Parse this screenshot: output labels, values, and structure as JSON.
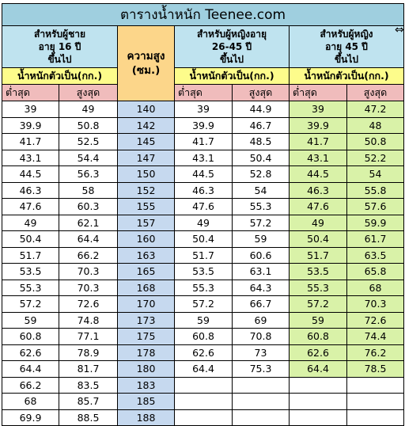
{
  "title": "ตารางน้ำหนัก Teenee.com",
  "groups": {
    "male": [
      "สำหรับผู้ชาย",
      "อายุ 16 ปี",
      "ขึ้นไป"
    ],
    "height": [
      "ความสูง",
      "(ซม.)"
    ],
    "female_26_45": [
      "สำหรับผู้หญิงอายุ",
      "26-45 ปี",
      "ขึ้นไป"
    ],
    "female_45": [
      "สำหรับผู้หญิง",
      "อายุ 45 ปี",
      "ขึ้นไป"
    ]
  },
  "ideal_weight_label": "น้ำหนักตัวเป็น(กก.)",
  "min_label": "ต่ำสุด",
  "max_label": "สูงสุด",
  "scroll_glyph": "⇔",
  "rows": [
    {
      "m_min": "39",
      "m_max": "49",
      "h": "140",
      "f1_min": "39",
      "f1_max": "44.9",
      "f2_min": "39",
      "f2_max": "47.2"
    },
    {
      "m_min": "39.9",
      "m_max": "50.8",
      "h": "142",
      "f1_min": "39.9",
      "f1_max": "46.7",
      "f2_min": "39.9",
      "f2_max": "48"
    },
    {
      "m_min": "41.7",
      "m_max": "52.5",
      "h": "145",
      "f1_min": "41.7",
      "f1_max": "48.5",
      "f2_min": "41.7",
      "f2_max": "50.8"
    },
    {
      "m_min": "43.1",
      "m_max": "54.4",
      "h": "147",
      "f1_min": "43.1",
      "f1_max": "50.4",
      "f2_min": "43.1",
      "f2_max": "52.2"
    },
    {
      "m_min": "44.5",
      "m_max": "56.3",
      "h": "150",
      "f1_min": "44.5",
      "f1_max": "52.8",
      "f2_min": "44.5",
      "f2_max": "54"
    },
    {
      "m_min": "46.3",
      "m_max": "58",
      "h": "152",
      "f1_min": "46.3",
      "f1_max": "54",
      "f2_min": "46.3",
      "f2_max": "55.8"
    },
    {
      "m_min": "47.6",
      "m_max": "60.3",
      "h": "155",
      "f1_min": "47.6",
      "f1_max": "55.3",
      "f2_min": "47.6",
      "f2_max": "57.6"
    },
    {
      "m_min": "49",
      "m_max": "62.1",
      "h": "157",
      "f1_min": "49",
      "f1_max": "57.2",
      "f2_min": "49",
      "f2_max": "59.9"
    },
    {
      "m_min": "50.4",
      "m_max": "64.4",
      "h": "160",
      "f1_min": "50.4",
      "f1_max": "59",
      "f2_min": "50.4",
      "f2_max": "61.7"
    },
    {
      "m_min": "51.7",
      "m_max": "66.2",
      "h": "163",
      "f1_min": "51.7",
      "f1_max": "60.6",
      "f2_min": "51.7",
      "f2_max": "63.5"
    },
    {
      "m_min": "53.5",
      "m_max": "70.3",
      "h": "165",
      "f1_min": "53.5",
      "f1_max": "63.1",
      "f2_min": "53.5",
      "f2_max": "65.8"
    },
    {
      "m_min": "55.3",
      "m_max": "70.3",
      "h": "168",
      "f1_min": "55.3",
      "f1_max": "64.3",
      "f2_min": "55.3",
      "f2_max": "68"
    },
    {
      "m_min": "57.2",
      "m_max": "72.6",
      "h": "170",
      "f1_min": "57.2",
      "f1_max": "66.7",
      "f2_min": "57.2",
      "f2_max": "70.3"
    },
    {
      "m_min": "59",
      "m_max": "74.8",
      "h": "173",
      "f1_min": "59",
      "f1_max": "69",
      "f2_min": "59",
      "f2_max": "72.6"
    },
    {
      "m_min": "60.8",
      "m_max": "77.1",
      "h": "175",
      "f1_min": "60.8",
      "f1_max": "70.8",
      "f2_min": "60.8",
      "f2_max": "74.4"
    },
    {
      "m_min": "62.6",
      "m_max": "78.9",
      "h": "178",
      "f1_min": "62.6",
      "f1_max": "73",
      "f2_min": "62.6",
      "f2_max": "76.2"
    },
    {
      "m_min": "64.4",
      "m_max": "81.7",
      "h": "180",
      "f1_min": "64.4",
      "f1_max": "75.3",
      "f2_min": "64.4",
      "f2_max": "78.5"
    },
    {
      "m_min": "66.2",
      "m_max": "83.5",
      "h": "183",
      "f1_min": "",
      "f1_max": "",
      "f2_min": "",
      "f2_max": ""
    },
    {
      "m_min": "68",
      "m_max": "85.7",
      "h": "185",
      "f1_min": "",
      "f1_max": "",
      "f2_min": "",
      "f2_max": ""
    },
    {
      "m_min": "69.9",
      "m_max": "88.5",
      "h": "188",
      "f1_min": "",
      "f1_max": "",
      "f2_min": "",
      "f2_max": ""
    }
  ]
}
